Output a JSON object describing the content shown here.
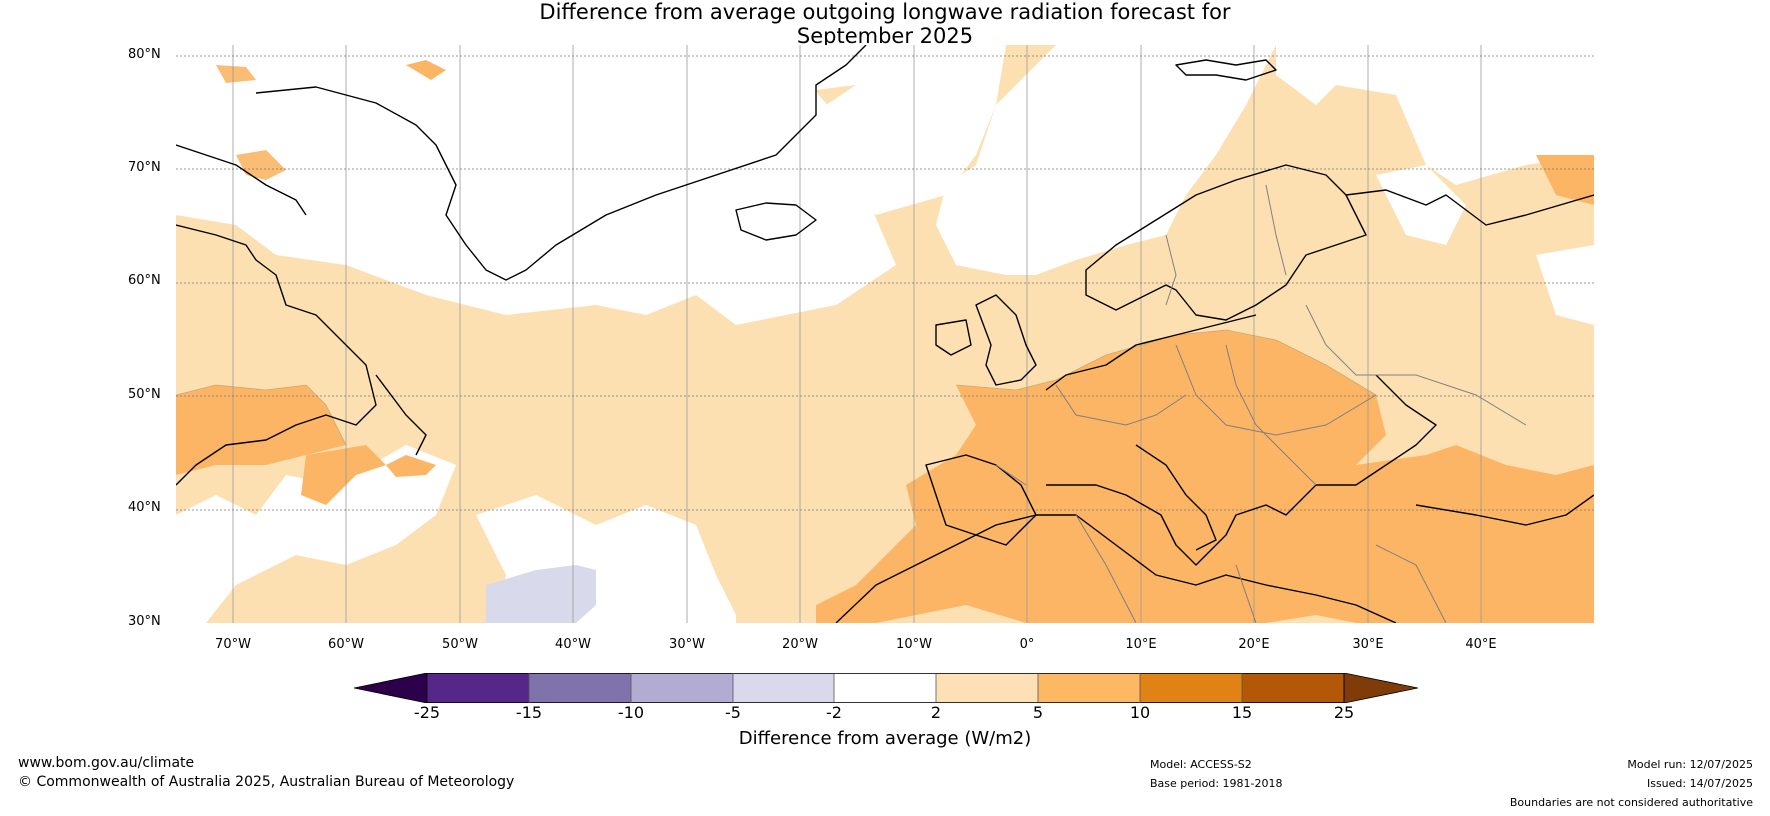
{
  "title": {
    "line1": "Difference from average outgoing longwave radiation forecast for",
    "line2": "September 2025"
  },
  "map": {
    "lat_labels": [
      "80°N",
      "70°N",
      "60°N",
      "50°N",
      "40°N",
      "30°N"
    ],
    "lon_labels": [
      "70°W",
      "60°W",
      "50°W",
      "40°W",
      "30°W",
      "20°W",
      "10°W",
      "0°",
      "10°E",
      "20°E",
      "30°E",
      "40°E"
    ],
    "colors": {
      "cat_m2_to_2": "#ffffff",
      "cat_2_to_5": "#fde0b2",
      "cat_5_to_10": "#fbb564",
      "cat_m5_to_m2": "#d8d9eb",
      "coast": "#000000",
      "borders": "#7a7a7a"
    }
  },
  "colorbar": {
    "ticks": [
      "-25",
      "-15",
      "-10",
      "-5",
      "-2",
      "2",
      "5",
      "10",
      "15",
      "25"
    ],
    "colors": [
      "#2d004b",
      "#542788",
      "#8073ac",
      "#b2abd2",
      "#d8daeb",
      "#ffffff",
      "#fee0b6",
      "#fdb863",
      "#e08214",
      "#b35806",
      "#7f3b08"
    ],
    "label": "Difference from average (W/m2)"
  },
  "footer": {
    "website": "www.bom.gov.au/climate",
    "copyright": "© Commonwealth of Australia 2025, Australian Bureau of Meteorology",
    "model": "Model: ACCESS-S2",
    "base_period": "Base period: 1981-2018",
    "model_run": "Model run: 12/07/2025",
    "issued": "Issued: 14/07/2025",
    "disclaimer": "Boundaries are not considered authoritative"
  }
}
